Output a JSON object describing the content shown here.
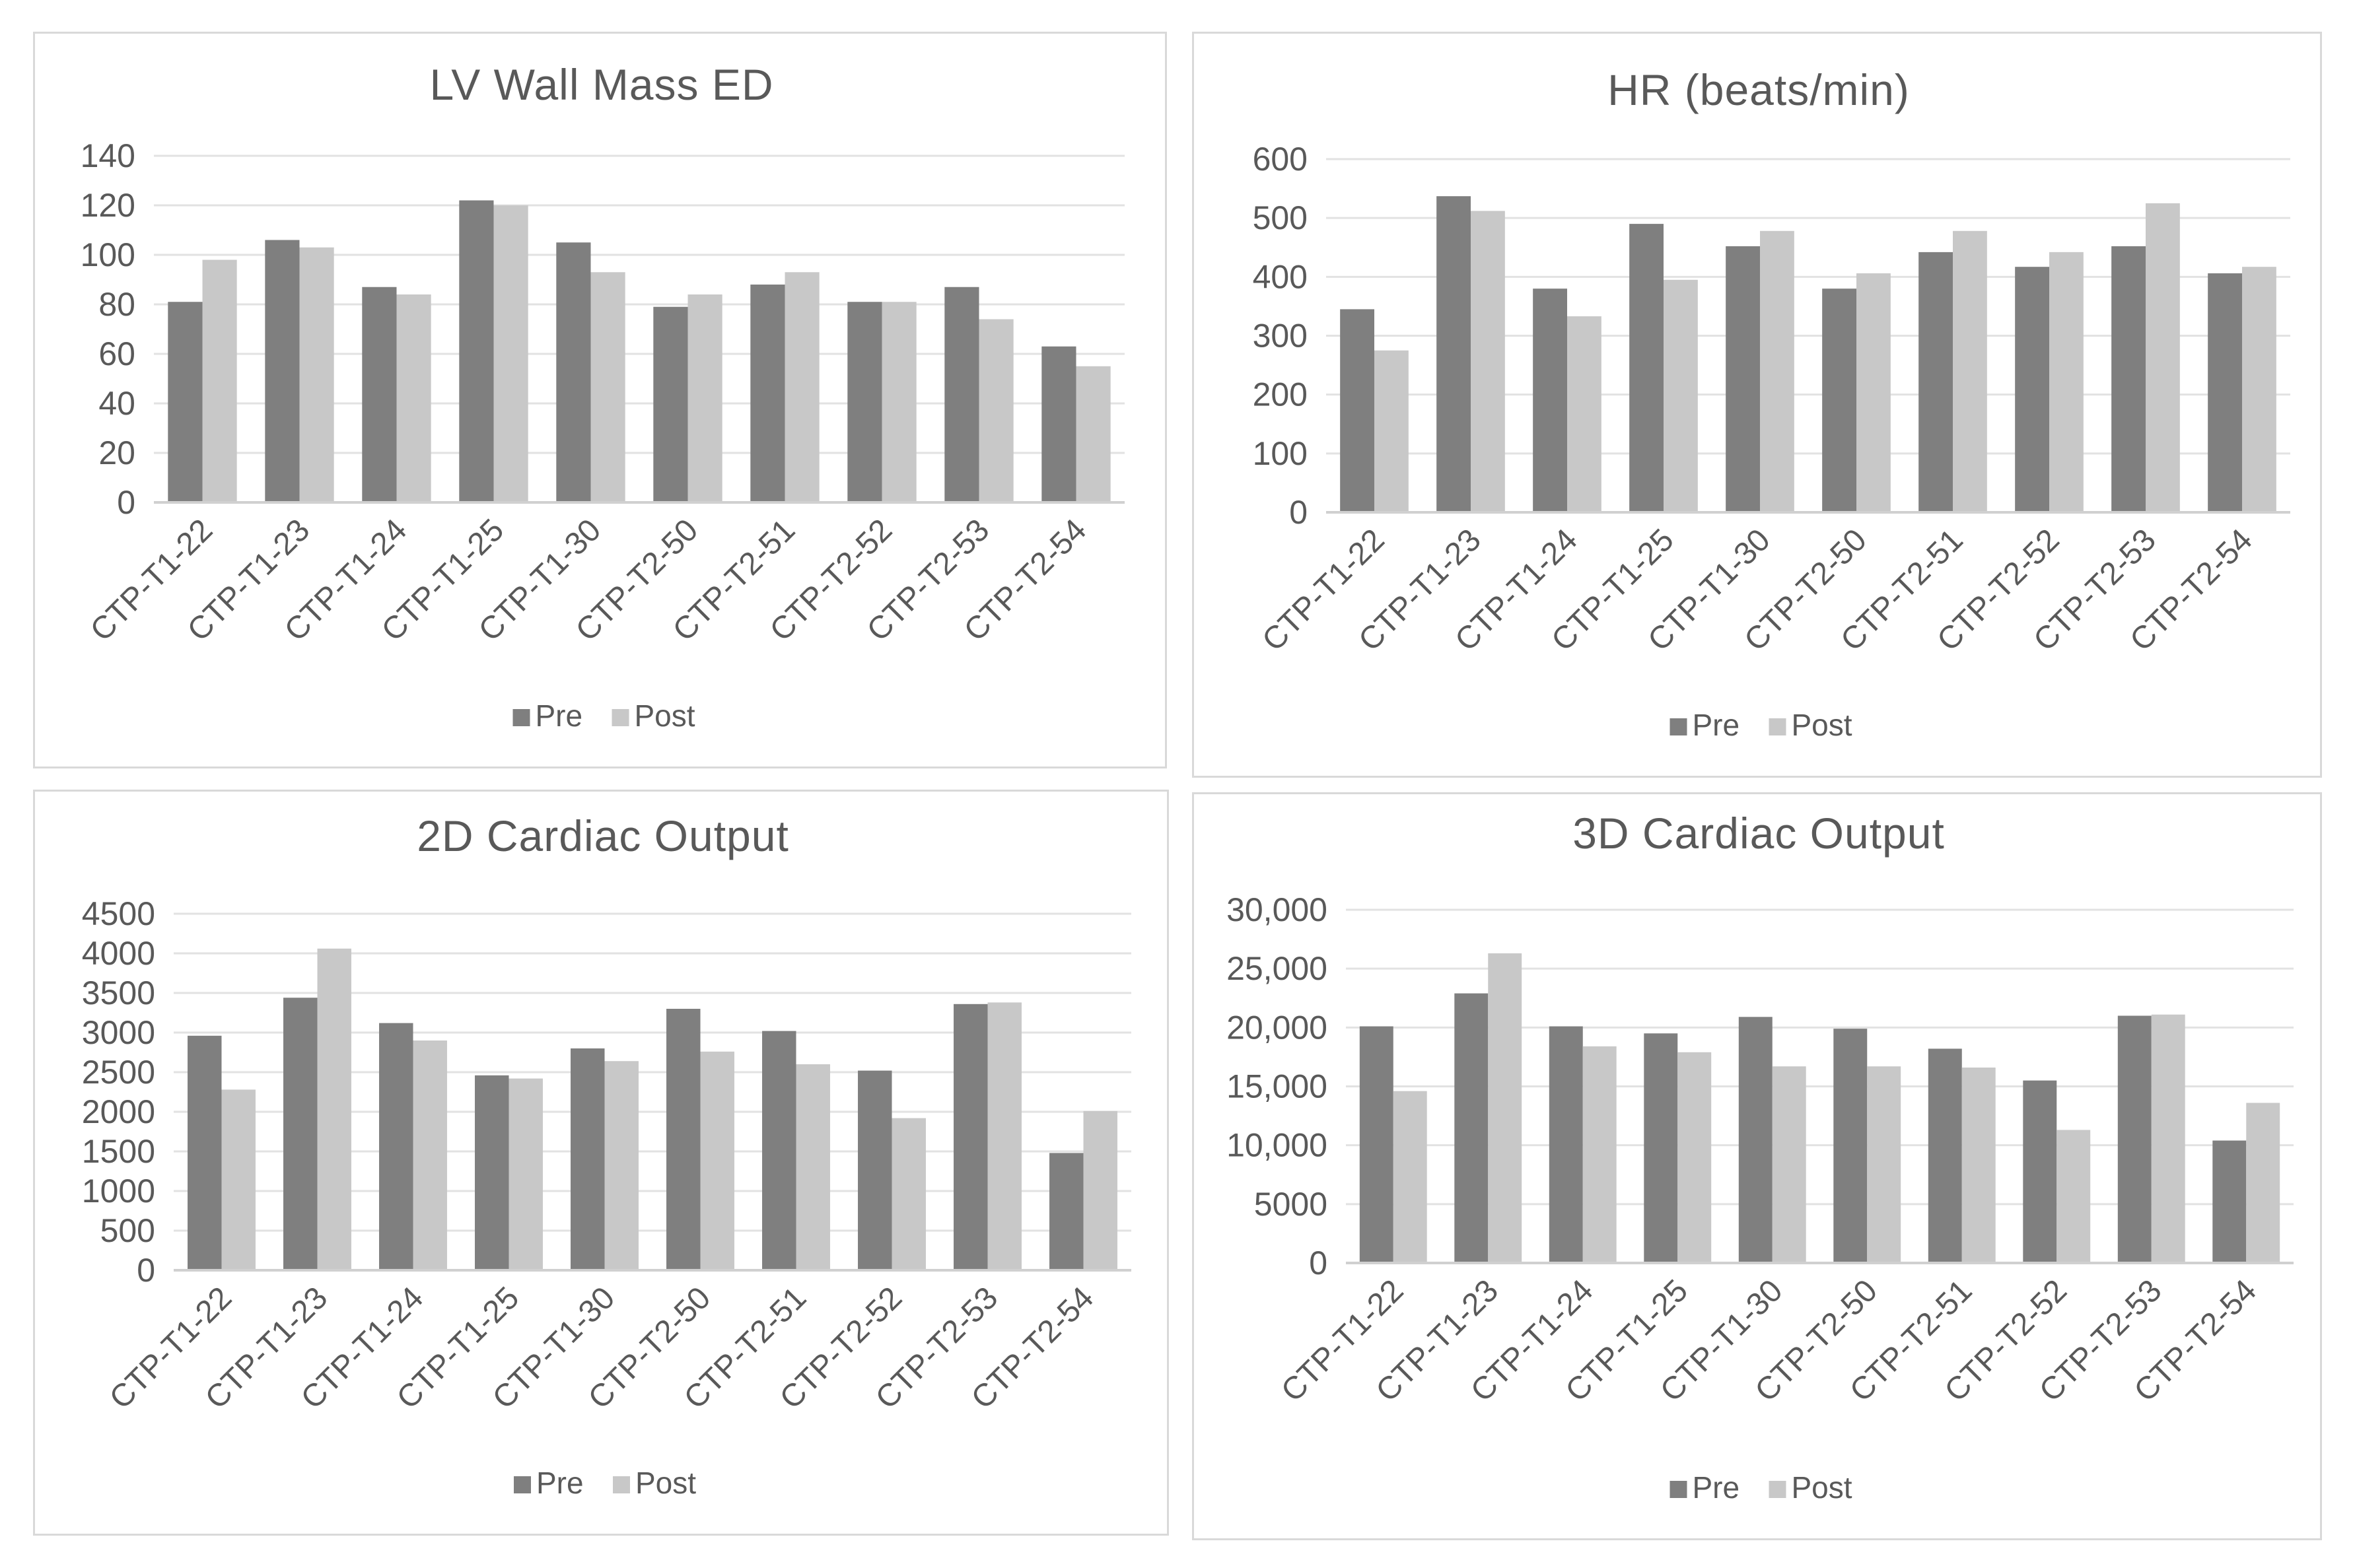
{
  "chart_data": [
    {
      "type": "bar",
      "title": "LV Wall Mass ED",
      "categories": [
        "CTP-T1-22",
        "CTP-T1-23",
        "CTP-T1-24",
        "CTP-T1-25",
        "CTP-T1-30",
        "CTP-T2-50",
        "CTP-T2-51",
        "CTP-T2-52",
        "CTP-T2-53",
        "CTP-T2-54"
      ],
      "series": [
        {
          "name": "Pre",
          "color": "#7f7f7f",
          "values": [
            81,
            106,
            87,
            122,
            105,
            79,
            88,
            81,
            87,
            63
          ]
        },
        {
          "name": "Post",
          "color": "#c8c8c8",
          "values": [
            98,
            103,
            84,
            120,
            93,
            84,
            93,
            81,
            74,
            55
          ]
        }
      ],
      "ylim": [
        0,
        140
      ],
      "yticks": [
        "0",
        "20",
        "40",
        "60",
        "80",
        "100",
        "120",
        "140"
      ],
      "xlabel": "",
      "ylabel": "",
      "legend": "bottom",
      "grid": true
    },
    {
      "type": "bar",
      "title": "HR (beats/min)",
      "categories": [
        "CTP-T1-22",
        "CTP-T1-23",
        "CTP-T1-24",
        "CTP-T1-25",
        "CTP-T1-30",
        "CTP-T2-50",
        "CTP-T2-51",
        "CTP-T2-52",
        "CTP-T2-53",
        "CTP-T2-54"
      ],
      "series": [
        {
          "name": "Pre",
          "color": "#7f7f7f",
          "values": [
            345,
            537,
            380,
            490,
            452,
            380,
            442,
            417,
            452,
            406
          ]
        },
        {
          "name": "Post",
          "color": "#c8c8c8",
          "values": [
            275,
            512,
            333,
            395,
            478,
            406,
            478,
            442,
            525,
            417
          ]
        }
      ],
      "ylim": [
        0,
        600
      ],
      "yticks": [
        "0",
        "100",
        "200",
        "300",
        "400",
        "500",
        "600"
      ],
      "xlabel": "",
      "ylabel": "",
      "legend": "bottom",
      "grid": true
    },
    {
      "type": "bar",
      "title": "2D Cardiac Output",
      "categories": [
        "CTP-T1-22",
        "CTP-T1-23",
        "CTP-T1-24",
        "CTP-T1-25",
        "CTP-T1-30",
        "CTP-T2-50",
        "CTP-T2-51",
        "CTP-T2-52",
        "CTP-T2-53",
        "CTP-T2-54"
      ],
      "series": [
        {
          "name": "Pre",
          "color": "#7f7f7f",
          "values": [
            2960,
            3440,
            3120,
            2460,
            2800,
            3300,
            3020,
            2520,
            3360,
            1480
          ]
        },
        {
          "name": "Post",
          "color": "#c8c8c8",
          "values": [
            2280,
            4060,
            2900,
            2420,
            2640,
            2760,
            2600,
            1920,
            3380,
            2010
          ]
        }
      ],
      "ylim": [
        0,
        4500
      ],
      "yticks": [
        "0",
        "500",
        "1000",
        "1500",
        "2000",
        "2500",
        "3000",
        "3500",
        "4000",
        "4500"
      ],
      "xlabel": "",
      "ylabel": "",
      "legend": "bottom",
      "grid": true
    },
    {
      "type": "bar",
      "title": "3D Cardiac Output",
      "categories": [
        "CTP-T1-22",
        "CTP-T1-23",
        "CTP-T1-24",
        "CTP-T1-25",
        "CTP-T1-30",
        "CTP-T2-50",
        "CTP-T2-51",
        "CTP-T2-52",
        "CTP-T2-53",
        "CTP-T2-54"
      ],
      "series": [
        {
          "name": "Pre",
          "color": "#7f7f7f",
          "values": [
            20100,
            22900,
            20100,
            19500,
            20900,
            19900,
            18200,
            15500,
            21000,
            10400
          ]
        },
        {
          "name": "Post",
          "color": "#c8c8c8",
          "values": [
            14600,
            26300,
            18400,
            17900,
            16700,
            16700,
            16600,
            11300,
            21100,
            13600
          ]
        }
      ],
      "ylim": [
        0,
        30000
      ],
      "yticks": [
        "0",
        "5000",
        "10,000",
        "15,000",
        "20,000",
        "25,000",
        "30,000"
      ],
      "xlabel": "",
      "ylabel": "",
      "legend": "bottom",
      "grid": true
    }
  ]
}
